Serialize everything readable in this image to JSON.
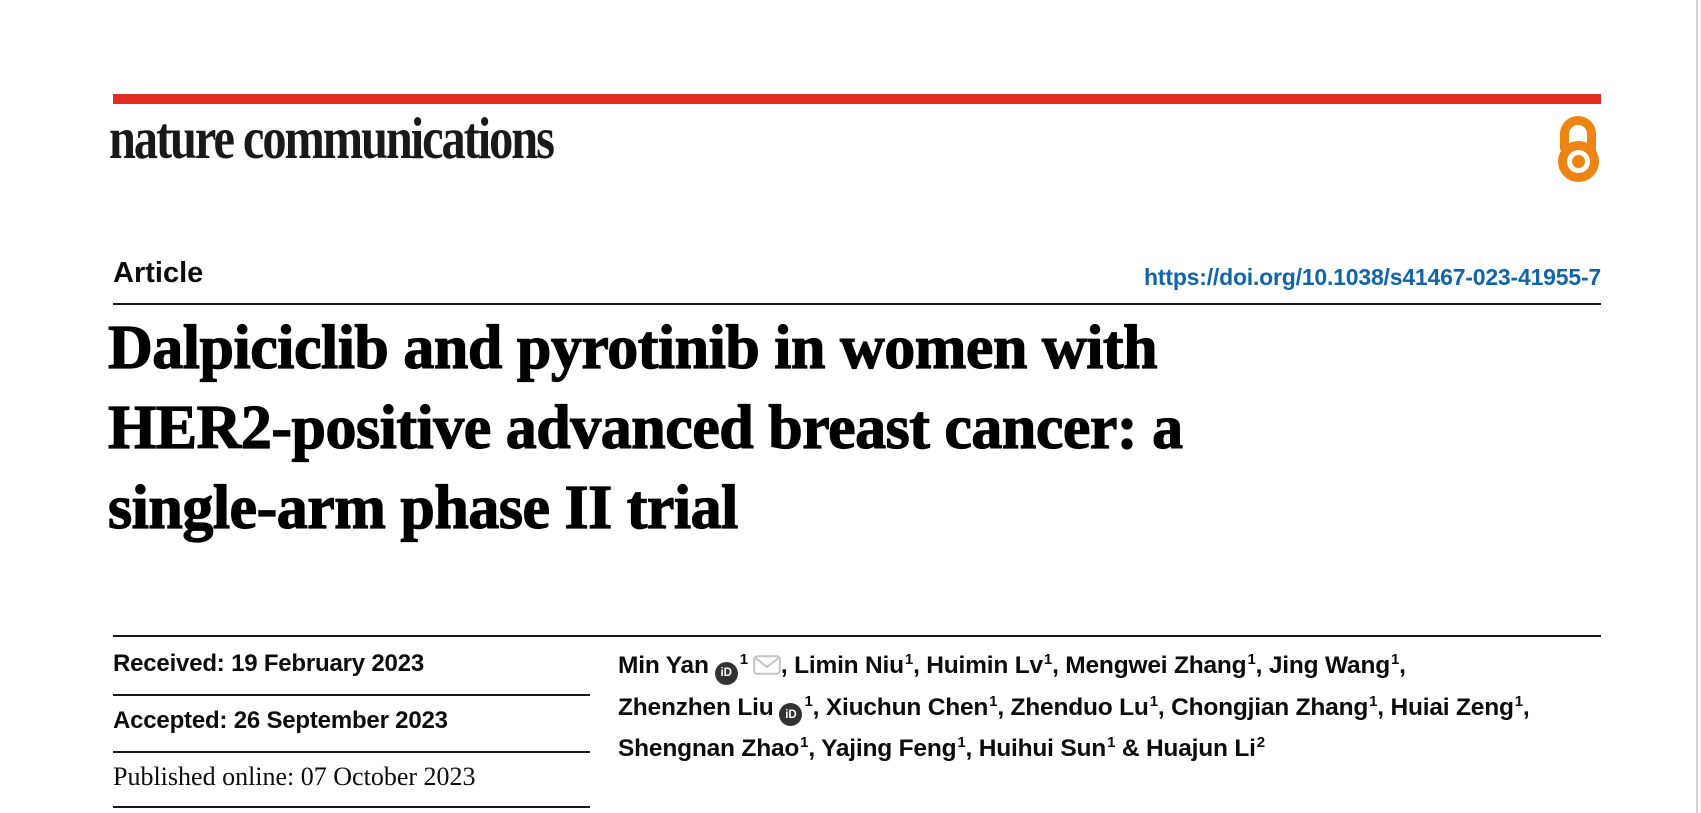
{
  "page": {
    "edge_color": "#d4d4d4",
    "background": "#ffffff"
  },
  "masthead": {
    "bar_color": "#e32d22",
    "journal_name": "nature communications",
    "open_access_icon": "open-access-padlock",
    "open_access_color": "#ee8412"
  },
  "article_header": {
    "kicker": "Article",
    "doi_url": "https://doi.org/10.1038/s41467-023-41955-7",
    "link_color": "#1165a9",
    "title_lines": [
      "Dalpiciclib and pyrotinib in women with",
      "HER2-positive advanced breast cancer: a",
      "single-arm phase II trial"
    ]
  },
  "dates": [
    {
      "label": "Received:",
      "value": "19 February 2023"
    },
    {
      "label": "Accepted:",
      "value": "26 September 2023"
    },
    {
      "label": "Published online:",
      "value": "07 October 2023"
    }
  ],
  "authors": {
    "orcid_label": "iD",
    "orcid_icon": "orcid-id-badge",
    "email_icon": "envelope",
    "lines": [
      [
        {
          "name": "Min Yan",
          "sup": "1",
          "orcid": true,
          "email": true,
          "sep": ", "
        },
        {
          "name": "Limin Niu",
          "sup": "1",
          "sep": ", "
        },
        {
          "name": "Huimin Lv",
          "sup": "1",
          "sep": ", "
        },
        {
          "name": "Mengwei Zhang",
          "sup": "1",
          "sep": ", "
        },
        {
          "name": "Jing Wang",
          "sup": "1",
          "sep": ","
        }
      ],
      [
        {
          "name": "Zhenzhen Liu",
          "sup": "1",
          "orcid": true,
          "sep": ", "
        },
        {
          "name": "Xiuchun Chen",
          "sup": "1",
          "sep": ", "
        },
        {
          "name": "Zhenduo Lu",
          "sup": "1",
          "sep": ", "
        },
        {
          "name": "Chongjian Zhang",
          "sup": "1",
          "sep": ", "
        },
        {
          "name": "Huiai Zeng",
          "sup": "1",
          "sep": ","
        }
      ],
      [
        {
          "name": "Shengnan Zhao",
          "sup": "1",
          "sep": ", "
        },
        {
          "name": "Yajing Feng",
          "sup": "1",
          "sep": ", "
        },
        {
          "name": "Huihui Sun",
          "sup": "1",
          "sep": " & "
        },
        {
          "name": "Huajun Li",
          "sup": "2",
          "sep": ""
        }
      ]
    ]
  }
}
